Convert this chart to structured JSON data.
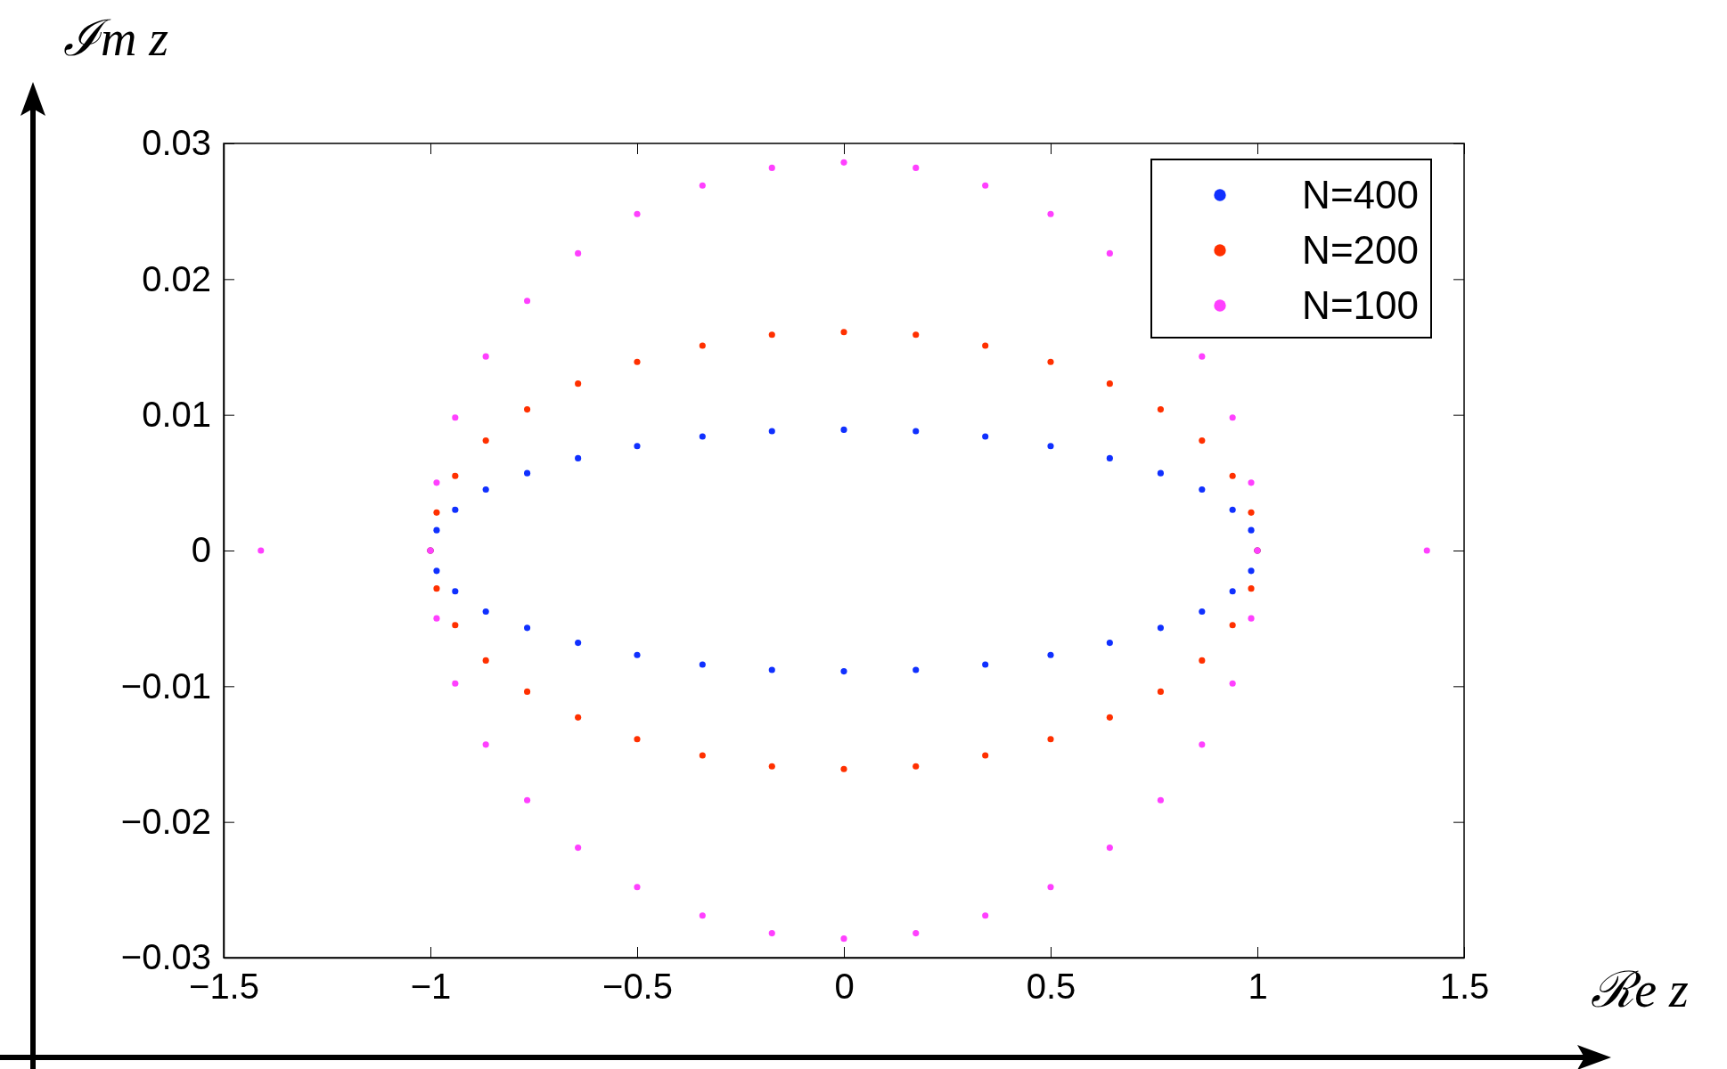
{
  "chart_data": {
    "type": "scatter",
    "xlabel": "ℛe z",
    "ylabel": "ℐm z",
    "x": [
      1,
      0.985,
      0.94,
      0.866,
      0.766,
      0.643,
      0.5,
      0.342,
      0.174,
      0,
      -0.174,
      -0.342,
      -0.5,
      -0.643,
      -0.766,
      -0.866,
      -0.94,
      -0.985,
      -1,
      -0.985,
      -0.94,
      -0.866,
      -0.766,
      -0.643,
      -0.5,
      -0.342,
      -0.174,
      0,
      0.174,
      0.342,
      0.5,
      0.643,
      0.766,
      0.866,
      0.94,
      0.985
    ],
    "series": [
      {
        "name": "N=400",
        "color": "#1030ff",
        "values": [
          0,
          0.0015,
          0.003,
          0.0045,
          0.0057,
          0.0068,
          0.0077,
          0.0084,
          0.0088,
          0.0089,
          0.0088,
          0.0084,
          0.0077,
          0.0068,
          0.0057,
          0.0045,
          0.003,
          0.0015,
          0,
          -0.0015,
          -0.003,
          -0.0045,
          -0.0057,
          -0.0068,
          -0.0077,
          -0.0084,
          -0.0088,
          -0.0089,
          -0.0088,
          -0.0084,
          -0.0077,
          -0.0068,
          -0.0057,
          -0.0045,
          -0.003,
          -0.0015
        ]
      },
      {
        "name": "N=200",
        "color": "#ff3000",
        "values": [
          0,
          0.0028,
          0.0055,
          0.0081,
          0.0104,
          0.0123,
          0.0139,
          0.0151,
          0.0159,
          0.0161,
          0.0159,
          0.0151,
          0.0139,
          0.0123,
          0.0104,
          0.0081,
          0.0055,
          0.0028,
          0,
          -0.0028,
          -0.0055,
          -0.0081,
          -0.0104,
          -0.0123,
          -0.0139,
          -0.0151,
          -0.0159,
          -0.0161,
          -0.0159,
          -0.0151,
          -0.0139,
          -0.0123,
          -0.0104,
          -0.0081,
          -0.0055,
          -0.0028
        ]
      },
      {
        "name": "N=100",
        "color": "#ff40ff",
        "x": [
          1,
          0.985,
          0.94,
          0.866,
          0.643,
          0.5,
          0.342,
          0.174,
          0,
          -0.174,
          -0.342,
          -0.5,
          -0.643,
          -0.766,
          -0.866,
          -0.94,
          -0.985,
          -1,
          -0.985,
          -0.94,
          -0.866,
          -0.766,
          -0.643,
          -0.5,
          -0.342,
          -0.174,
          0,
          0.174,
          0.342,
          0.5,
          0.643,
          0.766,
          0.866,
          0.94,
          0.985,
          -1.41,
          1.41
        ],
        "values": [
          0,
          0.005,
          0.0098,
          0.0143,
          0.0219,
          0.0248,
          0.0269,
          0.0282,
          0.0286,
          0.0282,
          0.0269,
          0.0248,
          0.0219,
          0.0184,
          0.0143,
          0.0098,
          0.005,
          0,
          -0.005,
          -0.0098,
          -0.0143,
          -0.0184,
          -0.0219,
          -0.0248,
          -0.0269,
          -0.0282,
          -0.0286,
          -0.0282,
          -0.0269,
          -0.0248,
          -0.0219,
          -0.0184,
          -0.0143,
          -0.0098,
          -0.005,
          0,
          0
        ]
      }
    ],
    "xlim": [
      -1.5,
      1.5
    ],
    "ylim": [
      -0.03,
      0.03
    ],
    "xticks": [
      {
        "value": -1.5,
        "label": "−1.5"
      },
      {
        "value": -1,
        "label": "−1"
      },
      {
        "value": -0.5,
        "label": "−0.5"
      },
      0,
      0.5,
      1,
      1.5
    ],
    "yticks": [
      {
        "value": -0.03,
        "label": "−0.03"
      },
      {
        "value": -0.02,
        "label": "−0.02"
      },
      {
        "value": -0.01,
        "label": "−0.01"
      },
      0,
      0.01,
      0.02,
      0.03
    ],
    "marker": "circle",
    "legend": "top right",
    "grid": false
  }
}
